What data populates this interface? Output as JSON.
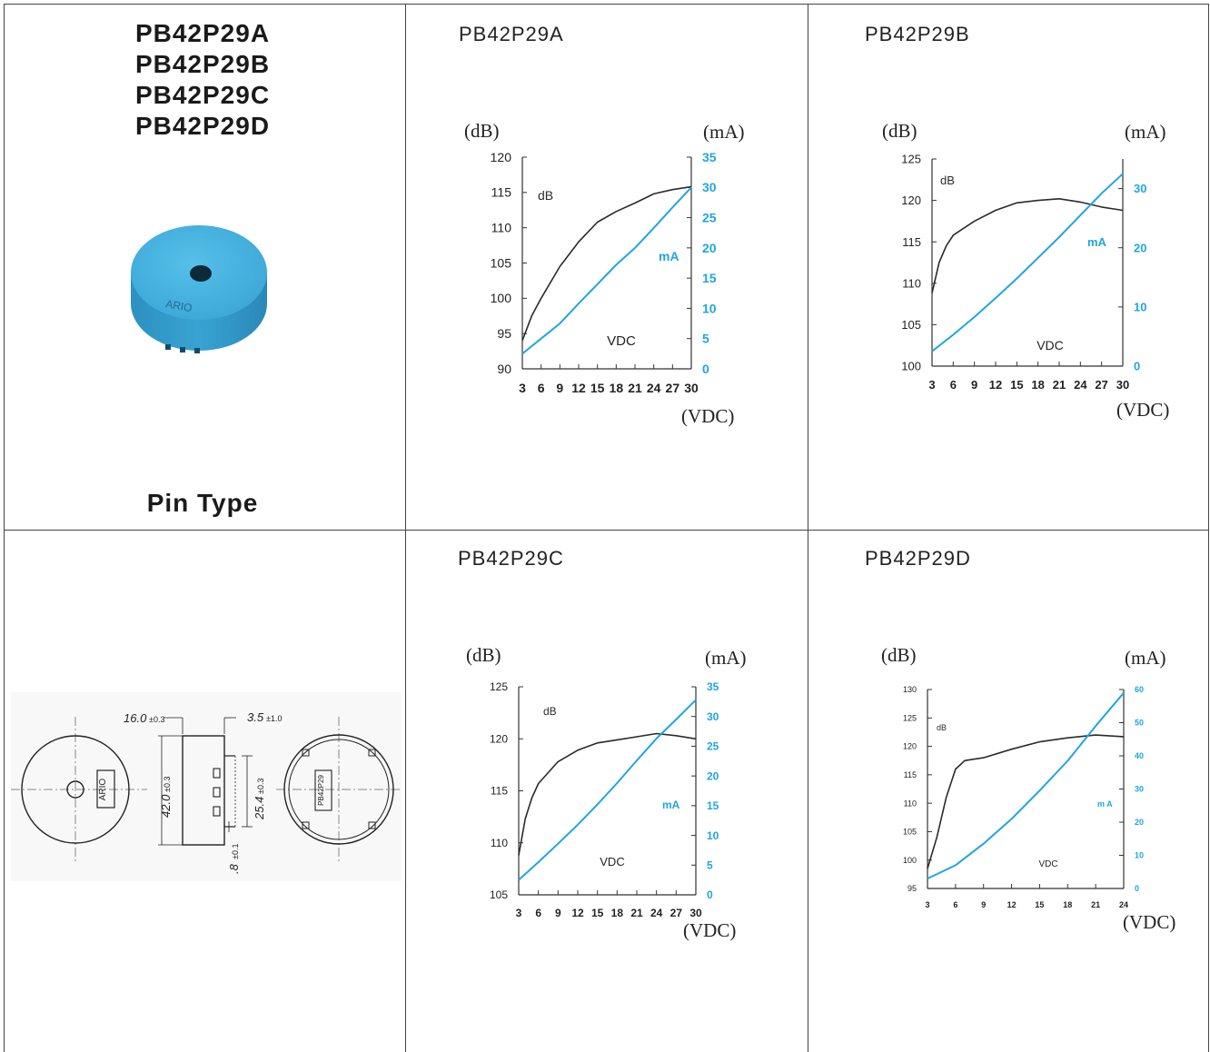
{
  "product": {
    "models": [
      "PB42P29A",
      "PB42P29B",
      "PB42P29C",
      "PB42P29D"
    ],
    "mount_type": "Pin Type",
    "brand_mark": "ARIO",
    "colors": {
      "housing": "#3aa8d6",
      "current_line": "#1ea6e0",
      "sound_line": "#2a2a2a"
    }
  },
  "dimensions": {
    "length": "16.0",
    "length_tol": "±0.3",
    "pin_length": "3.5",
    "pin_length_tol": "±1.0",
    "diameter": "42.0",
    "diameter_tol": "±0.3",
    "pin_spacing": "25.4",
    "pin_spacing_tol": "±0.3",
    "pin_dia": ".8",
    "pin_dia_tol": "±0.1",
    "back_label": "PB42P29"
  },
  "chart_data": [
    {
      "type": "line",
      "title": "PB42P29A",
      "left_unit": "(dB)",
      "right_unit": "(mA)",
      "x_unit": "(VDC)",
      "xlabel": "VDC",
      "x_ticks": [
        3,
        6,
        9,
        12,
        15,
        18,
        21,
        24,
        27,
        30
      ],
      "x_tick_labels": [
        "3",
        "6",
        "9",
        "12",
        "15",
        "18",
        "21",
        "24",
        "27",
        "30"
      ],
      "xlim": [
        3,
        30
      ],
      "ylim_left": [
        90,
        120
      ],
      "y_ticks_left": [
        90,
        95,
        100,
        105,
        110,
        115,
        120
      ],
      "ylim_right": [
        0,
        35
      ],
      "y_ticks_right": [
        0,
        5,
        10,
        15,
        20,
        25,
        30,
        35
      ],
      "series": [
        {
          "name": "dB",
          "axis": "left",
          "x": [
            3,
            4.5,
            6,
            9,
            12,
            15,
            18,
            21,
            24,
            27,
            30
          ],
          "values": [
            94,
            97.5,
            100,
            104.5,
            108,
            110.8,
            112.3,
            113.5,
            114.8,
            115.4,
            115.8
          ]
        },
        {
          "name": "mA",
          "axis": "right",
          "x": [
            3,
            6,
            9,
            12,
            15,
            18,
            21,
            24,
            27,
            30
          ],
          "values": [
            2.5,
            5,
            7.5,
            10.8,
            14,
            17.2,
            20,
            23.3,
            26.7,
            30
          ]
        }
      ]
    },
    {
      "type": "line",
      "title": "PB42P29B",
      "left_unit": "(dB)",
      "right_unit": "(mA)",
      "x_unit": "(VDC)",
      "xlabel": "VDC",
      "x_ticks": [
        3,
        6,
        9,
        12,
        15,
        18,
        21,
        24,
        27,
        30
      ],
      "x_tick_labels": [
        "3",
        "6",
        "9",
        "12",
        "15",
        "18",
        "21",
        "24",
        "27",
        "30"
      ],
      "xlim": [
        3,
        30
      ],
      "ylim_left": [
        100,
        125
      ],
      "y_ticks_left": [
        100,
        105,
        110,
        115,
        120,
        125
      ],
      "ylim_right": [
        0,
        35
      ],
      "y_ticks_right": [
        0,
        10,
        20,
        30
      ],
      "series": [
        {
          "name": "dB",
          "axis": "left",
          "x": [
            3,
            4,
            5,
            6,
            9,
            12,
            15,
            18,
            21,
            24,
            27,
            30
          ],
          "values": [
            108.8,
            112.5,
            114.5,
            115.8,
            117.5,
            118.8,
            119.7,
            120,
            120.2,
            119.8,
            119.2,
            118.8
          ]
        },
        {
          "name": "mA",
          "axis": "right",
          "x": [
            3,
            6,
            9,
            12,
            15,
            18,
            21,
            24,
            27,
            30
          ],
          "values": [
            2.5,
            5.3,
            8.3,
            11.5,
            14.8,
            18.3,
            21.8,
            25.5,
            29.2,
            32.5
          ]
        }
      ]
    },
    {
      "type": "line",
      "title": "PB42P29C",
      "left_unit": "(dB)",
      "right_unit": "(mA)",
      "x_unit": "(VDC)",
      "xlabel": "VDC",
      "x_ticks": [
        3,
        6,
        9,
        12,
        15,
        18,
        21,
        24,
        27,
        30
      ],
      "x_tick_labels": [
        "3",
        "6",
        "9",
        "12",
        "15",
        "18",
        "21",
        "24",
        "27",
        "30"
      ],
      "xlim": [
        3,
        30
      ],
      "ylim_left": [
        105,
        125
      ],
      "y_ticks_left": [
        105,
        110,
        115,
        120,
        125
      ],
      "ylim_right": [
        0,
        35
      ],
      "y_ticks_right": [
        0,
        5,
        10,
        15,
        20,
        25,
        30,
        35
      ],
      "series": [
        {
          "name": "dB",
          "axis": "left",
          "x": [
            3,
            4,
            5,
            6,
            9,
            12,
            15,
            18,
            21,
            24,
            27,
            30
          ],
          "values": [
            108.8,
            112.3,
            114.3,
            115.7,
            117.8,
            118.9,
            119.6,
            119.9,
            120.2,
            120.5,
            120.3,
            120
          ]
        },
        {
          "name": "mA",
          "axis": "right",
          "x": [
            3,
            6,
            9,
            12,
            15,
            18,
            21,
            24,
            27,
            30
          ],
          "values": [
            2.5,
            5.5,
            8.6,
            11.8,
            15.2,
            18.8,
            22.6,
            26.3,
            29.5,
            32.8
          ]
        }
      ]
    },
    {
      "type": "line",
      "title": "PB42P29D",
      "left_unit": "(dB)",
      "right_unit": "(mA)",
      "x_unit": "(VDC)",
      "xlabel": "VDC",
      "x_ticks": [
        3,
        6,
        9,
        12,
        15,
        18,
        21,
        24
      ],
      "x_tick_labels": [
        "3",
        "6",
        "9",
        "12",
        "15",
        "18",
        "21",
        "24"
      ],
      "xlim": [
        3,
        24
      ],
      "ylim_left": [
        95,
        130
      ],
      "y_ticks_left": [
        95,
        100,
        105,
        110,
        115,
        120,
        125,
        130
      ],
      "ylim_right": [
        0,
        60
      ],
      "y_ticks_right": [
        0,
        10,
        20,
        30,
        40,
        50,
        60
      ],
      "series": [
        {
          "name": "dB",
          "axis": "left",
          "x": [
            3,
            4,
            5,
            6,
            7,
            9,
            12,
            15,
            18,
            21,
            24
          ],
          "values": [
            98.5,
            104,
            111,
            116,
            117.5,
            118,
            119.5,
            120.8,
            121.5,
            122,
            121.7
          ]
        },
        {
          "name": "m A",
          "axis": "right",
          "x": [
            3,
            6,
            9,
            12,
            15,
            18,
            21,
            24
          ],
          "values": [
            3,
            7,
            13.5,
            21,
            29.5,
            38.5,
            49,
            59
          ]
        }
      ]
    }
  ]
}
